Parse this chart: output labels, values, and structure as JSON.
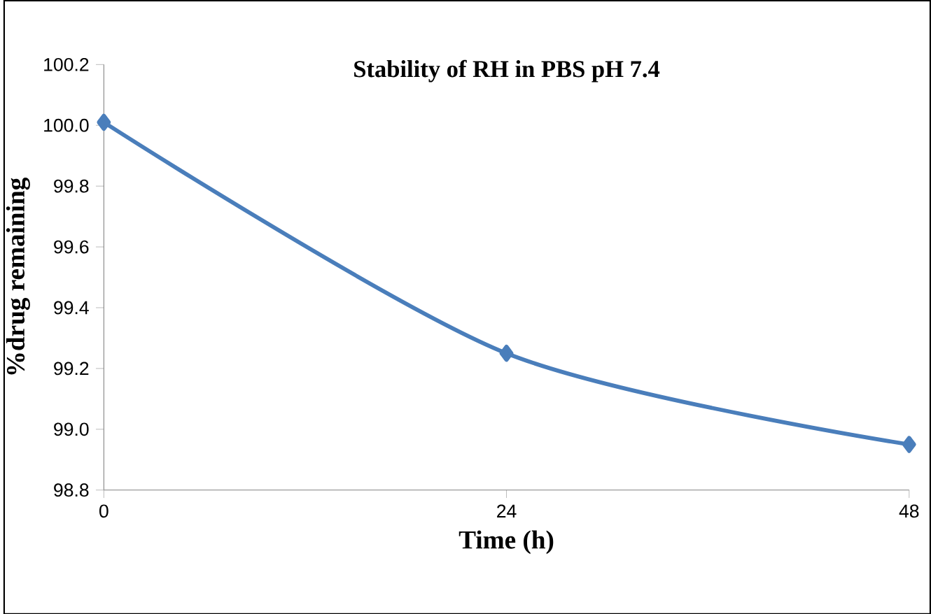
{
  "chart_data": {
    "type": "line",
    "title": "Stability of RH in PBS pH 7.4",
    "xlabel": "Time (h)",
    "ylabel": "%drug remaining",
    "x": [
      0,
      24,
      48
    ],
    "series": [
      {
        "color": "#4a7ebb",
        "values": [
          100.01,
          99.25,
          98.95
        ]
      }
    ],
    "xlim": [
      0,
      48
    ],
    "xticks": [
      0,
      24,
      48
    ],
    "ylim": [
      98.8,
      100.2
    ],
    "yticks": [
      98.8,
      {
        "value": 99.0,
        "label": "99.0"
      },
      99.2,
      99.4,
      99.6,
      99.8,
      {
        "value": 100.0,
        "label": "100.0"
      },
      100.2
    ],
    "marker": "diamond",
    "line_style": "solid",
    "grid": false
  }
}
